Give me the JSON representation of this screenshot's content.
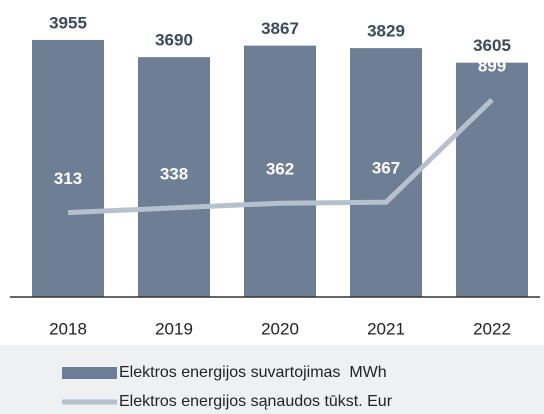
{
  "chart_data": {
    "type": "bar",
    "categories": [
      "2018",
      "2019",
      "2020",
      "2021",
      "2022"
    ],
    "ylim": [
      0,
      4000
    ],
    "y2lim": [
      -125,
      1225
    ],
    "series": [
      {
        "name": "Elektros energijos suvartojimas  MWh",
        "type": "bar",
        "color": "#6e7f95",
        "values": [
          3955,
          3690,
          3867,
          3829,
          3605
        ]
      },
      {
        "name": "Elektros energijos sąnaudos tūkst. Eur",
        "type": "line",
        "axis": "y2",
        "color": "#b7c1cd",
        "values": [
          313,
          338,
          362,
          367,
          899
        ]
      }
    ]
  }
}
